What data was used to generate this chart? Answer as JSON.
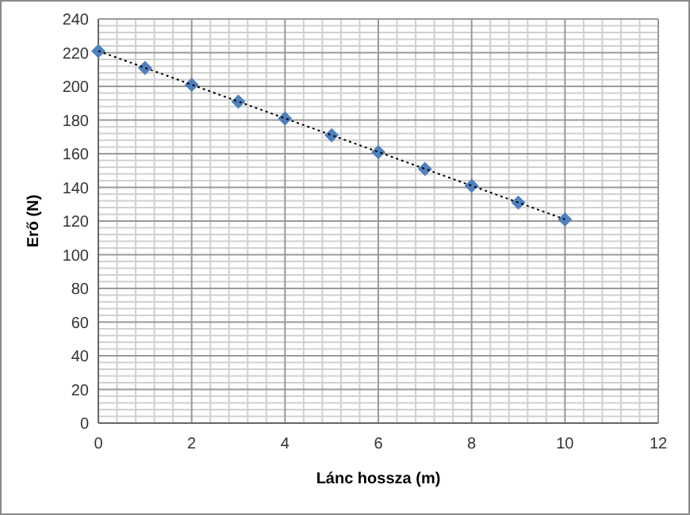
{
  "chart_data": {
    "type": "scatter",
    "xlabel": "Lánc hossza (m)",
    "ylabel": "Erő (N)",
    "x": [
      0,
      1,
      2,
      3,
      4,
      5,
      6,
      7,
      8,
      9,
      10
    ],
    "series": [
      {
        "color": "#4f81bd",
        "marker": "diamond",
        "values": [
          221,
          211,
          201,
          191,
          181,
          171,
          161,
          151,
          141,
          131,
          121
        ]
      },
      {
        "type": "line",
        "color": "#000000",
        "line_style": "dotted",
        "marker": "none",
        "x": [
          0,
          10
        ],
        "values": [
          221,
          121
        ]
      }
    ],
    "xlim": [
      0,
      12
    ],
    "xticks": [
      0,
      2,
      4,
      6,
      8,
      10,
      12
    ],
    "ylim": [
      0,
      240
    ],
    "yticks": [
      0,
      20,
      40,
      60,
      80,
      100,
      120,
      140,
      160,
      180,
      200,
      220,
      240
    ],
    "grid": true
  }
}
